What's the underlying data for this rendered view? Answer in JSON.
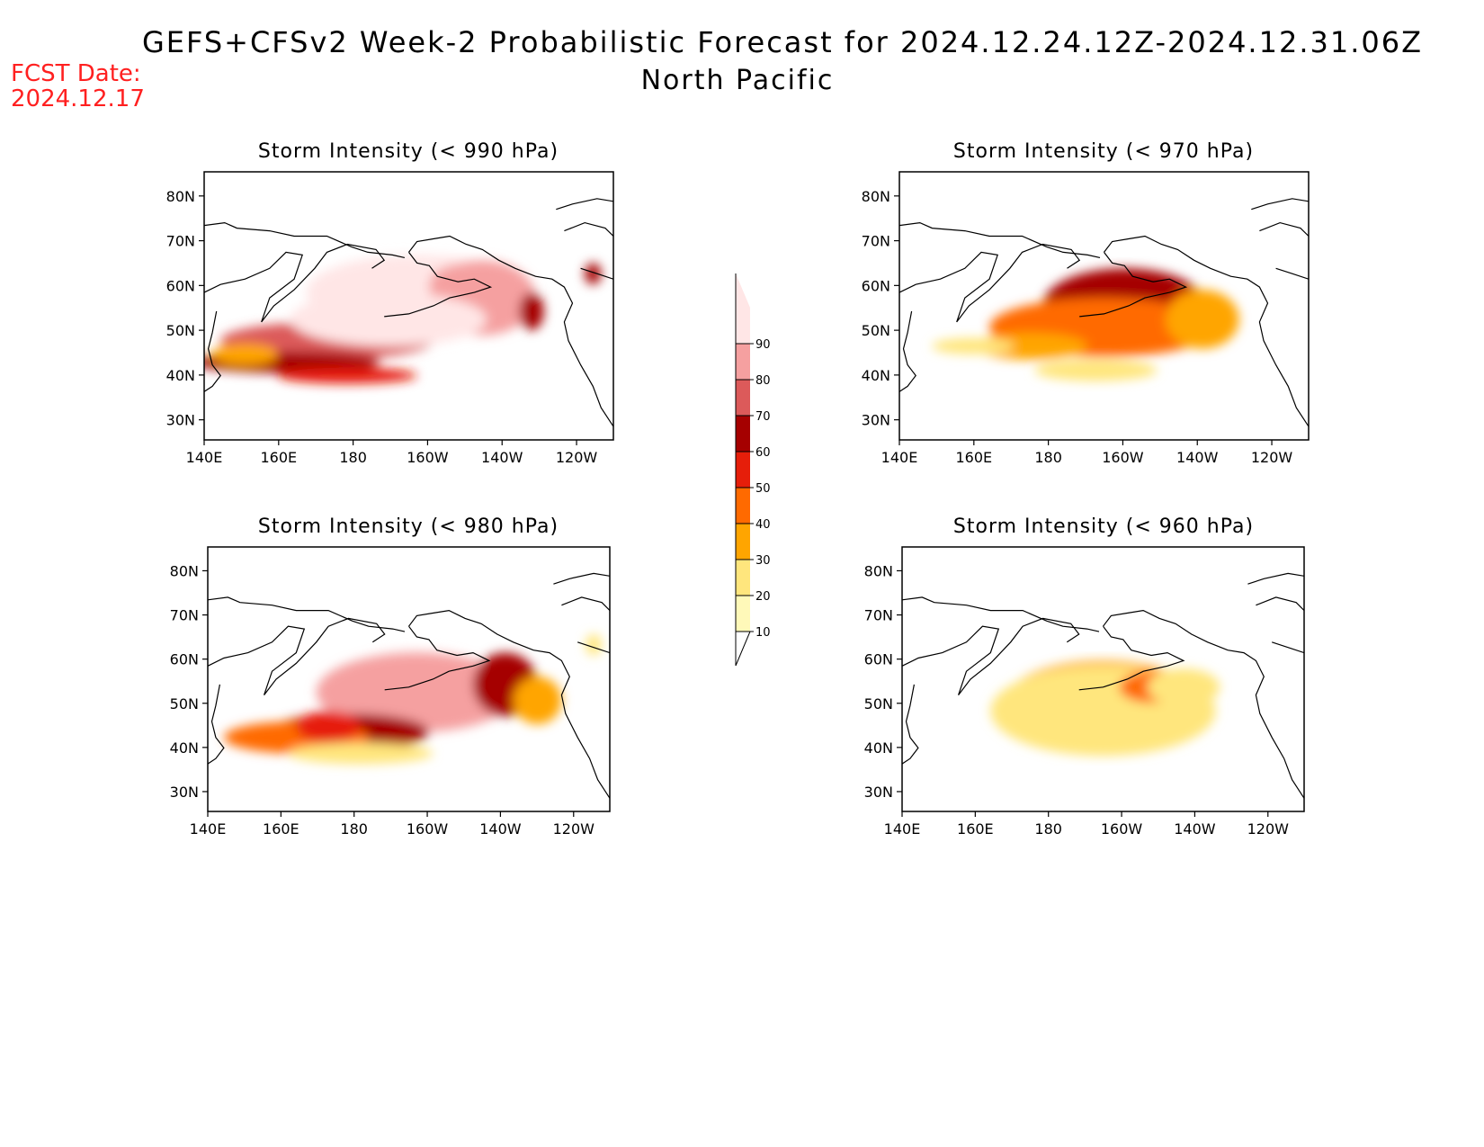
{
  "header": {
    "title": "GEFS+CFSv2 Week-2 Probabilistic Forecast for 2024.12.24.12Z-2024.12.31.06Z",
    "region": "North Pacific",
    "fcst_label": "FCST Date:",
    "fcst_date": "2024.12.17"
  },
  "panels": [
    {
      "title": "Storm Intensity (< 990 hPa)"
    },
    {
      "title": "Storm Intensity (< 970 hPa)"
    },
    {
      "title": "Storm Intensity (< 980 hPa)"
    },
    {
      "title": "Storm Intensity (< 960 hPa)"
    }
  ],
  "axes": {
    "lat_ticks": [
      "80N",
      "70N",
      "60N",
      "50N",
      "40N",
      "30N"
    ],
    "lon_ticks": [
      "140E",
      "160E",
      "180",
      "160W",
      "140W",
      "120W"
    ]
  },
  "colorbar": {
    "levels": [
      "10",
      "20",
      "30",
      "40",
      "50",
      "60",
      "70",
      "80",
      "90"
    ],
    "colors": [
      "#fff9b9",
      "#ffe67d",
      "#ffa500",
      "#ff6a00",
      "#e61e0a",
      "#a50000",
      "#dc5a5a",
      "#f5a0a0",
      "#ffe6e6"
    ]
  },
  "colors": {
    "fcst": "#ff2020"
  }
}
